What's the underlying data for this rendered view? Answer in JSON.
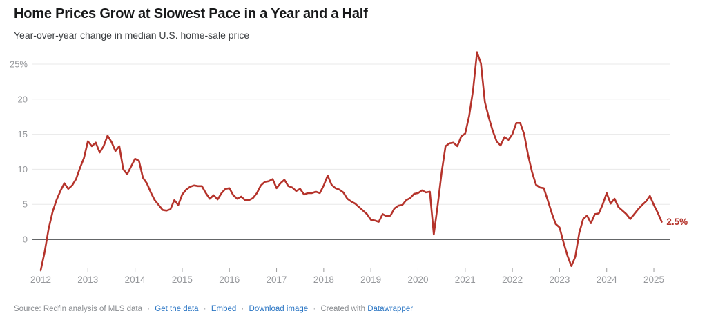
{
  "header": {
    "title": "Home Prices Grow at Slowest Pace in a Year and a Half",
    "subtitle": "Year-over-year change in median U.S. home-sale price"
  },
  "footer": {
    "source": "Source: Redfin analysis of MLS data",
    "sep": "·",
    "link_get_data": "Get the data",
    "link_embed": "Embed",
    "link_download": "Download image",
    "created_prefix": "Created with",
    "created_link": "Datawrapper"
  },
  "colors": {
    "line": "#b5332b",
    "gridline": "#e8e8e8",
    "zero_line": "#303336",
    "axis_text": "#95979b",
    "tick": "#9b9b9b",
    "end_label": "#b5332b"
  },
  "chart_data": {
    "type": "line",
    "title": "Home Prices Grow at Slowest Pace in a Year and a Half",
    "subtitle": "Year-over-year change in median U.S. home-sale price",
    "unit": "%",
    "frequency": "monthly",
    "x_start": "2012-01",
    "x_end": "2025-03",
    "grid": "horizontal",
    "legend": "none",
    "ylim": [
      -5,
      27
    ],
    "x_tick_labels": [
      "2012",
      "2013",
      "2014",
      "2015",
      "2016",
      "2017",
      "2018",
      "2019",
      "2020",
      "2021",
      "2022",
      "2023",
      "2024",
      "2025"
    ],
    "y_axis": {
      "ticks": [
        25,
        20,
        15,
        10,
        5,
        0
      ],
      "labels": [
        "25%",
        "20",
        "15",
        "10",
        "5",
        "0"
      ]
    },
    "end_label": "2.5%",
    "line_color": "#b5332b",
    "values": [
      -4.4,
      -1.8,
      1.5,
      3.9,
      5.6,
      6.9,
      8.0,
      7.2,
      7.7,
      8.6,
      10.2,
      11.6,
      14.0,
      13.3,
      13.8,
      12.4,
      13.3,
      14.8,
      13.9,
      12.6,
      13.3,
      10.0,
      9.3,
      10.4,
      11.5,
      11.2,
      8.8,
      8.0,
      6.7,
      5.6,
      4.9,
      4.2,
      4.1,
      4.3,
      5.6,
      4.9,
      6.4,
      7.1,
      7.5,
      7.7,
      7.6,
      7.6,
      6.6,
      5.8,
      6.3,
      5.7,
      6.6,
      7.2,
      7.3,
      6.3,
      5.8,
      6.1,
      5.6,
      5.6,
      5.9,
      6.6,
      7.7,
      8.2,
      8.3,
      8.6,
      7.3,
      8.0,
      8.5,
      7.6,
      7.4,
      6.9,
      7.2,
      6.4,
      6.6,
      6.6,
      6.8,
      6.6,
      7.7,
      9.1,
      7.8,
      7.3,
      7.1,
      6.7,
      5.8,
      5.4,
      5.1,
      4.6,
      4.1,
      3.6,
      2.8,
      2.7,
      2.5,
      3.6,
      3.3,
      3.4,
      4.4,
      4.8,
      4.9,
      5.6,
      5.9,
      6.5,
      6.6,
      7.0,
      6.7,
      6.8,
      0.7,
      4.8,
      9.5,
      13.3,
      13.7,
      13.8,
      13.3,
      14.7,
      15.1,
      17.6,
      21.3,
      26.7,
      25.1,
      19.6,
      17.4,
      15.5,
      14.0,
      13.4,
      14.6,
      14.2,
      15.0,
      16.6,
      16.6,
      15.0,
      12.0,
      9.6,
      7.8,
      7.4,
      7.3,
      5.6,
      3.8,
      2.2,
      1.7,
      -0.4,
      -2.3,
      -3.8,
      -2.5,
      0.9,
      2.9,
      3.4,
      2.3,
      3.6,
      3.7,
      5.0,
      6.6,
      5.1,
      5.8,
      4.6,
      4.1,
      3.6,
      2.9,
      3.6,
      4.3,
      4.9,
      5.4,
      6.2,
      4.9,
      3.8,
      2.5
    ]
  }
}
